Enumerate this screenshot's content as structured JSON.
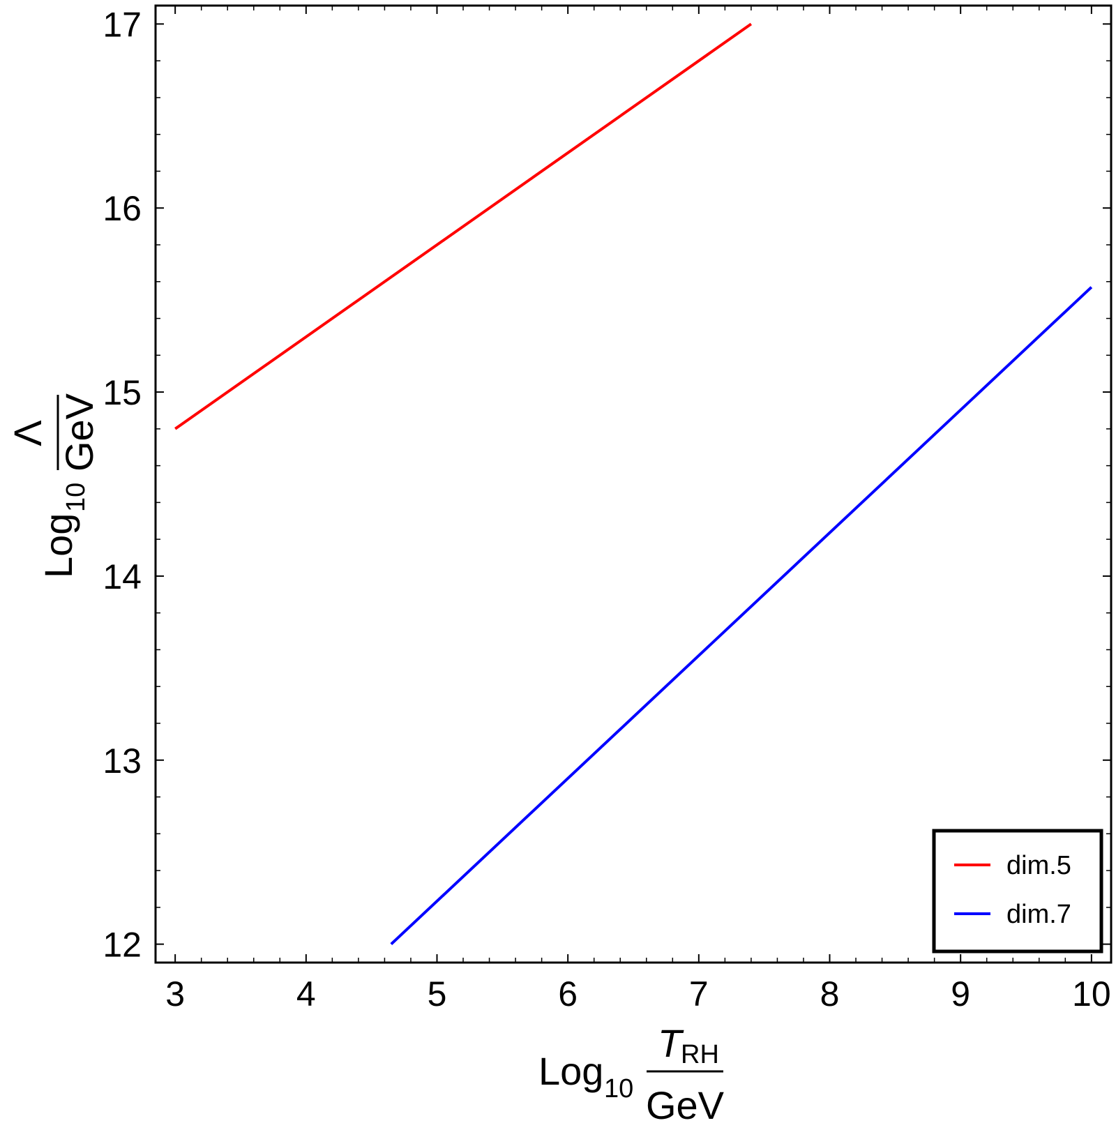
{
  "chart_data": {
    "type": "line",
    "xlabel": {
      "prefix": "Log",
      "subscript": "10",
      "numerator_main": "T",
      "numerator_sub": "RH",
      "denominator": "GeV"
    },
    "ylabel": {
      "prefix": "Log",
      "subscript": "10",
      "numerator": "Λ",
      "denominator": "GeV"
    },
    "xlim": [
      2.85,
      10.15
    ],
    "ylim": [
      11.9,
      17.1
    ],
    "xticks": [
      3,
      4,
      5,
      6,
      7,
      8,
      9,
      10
    ],
    "yticks": [
      12,
      13,
      14,
      15,
      16,
      17
    ],
    "grid": false,
    "legend_position": "bottom-right",
    "series": [
      {
        "name": "dim.5",
        "color": "#ff0000",
        "x": [
          3.0,
          7.4
        ],
        "y": [
          14.8,
          17.0
        ]
      },
      {
        "name": "dim.7",
        "color": "#0000ff",
        "x": [
          4.65,
          10.0
        ],
        "y": [
          12.0,
          15.57
        ]
      }
    ]
  }
}
